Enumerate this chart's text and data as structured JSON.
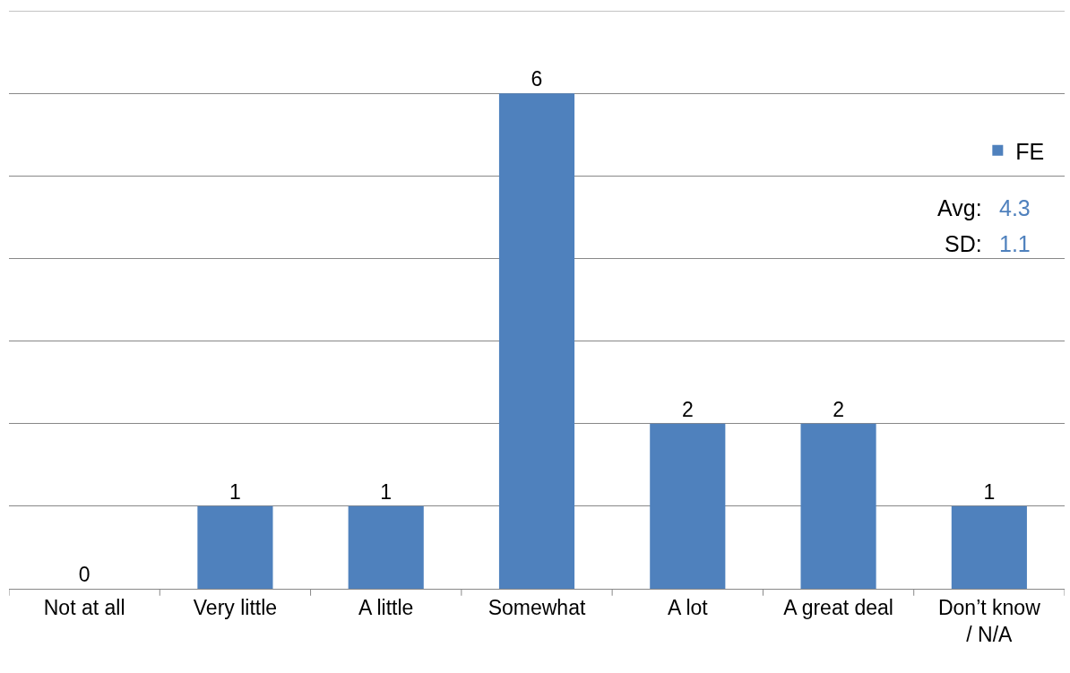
{
  "chart_data": {
    "type": "bar",
    "categories": [
      "Not at all",
      "Very little",
      "A little",
      "Somewhat",
      "A lot",
      "A great deal",
      "Don’t know / N/A"
    ],
    "series": [
      {
        "name": "FE",
        "color": "#4f81bd",
        "values": [
          0,
          1,
          1,
          6,
          2,
          2,
          1
        ]
      }
    ],
    "ylim": [
      0,
      7
    ],
    "yticks": [
      {
        "value": 0,
        "label": null
      },
      {
        "value": 1,
        "label": null
      },
      {
        "value": 2,
        "label": null
      },
      {
        "value": 3,
        "label": null
      },
      {
        "value": 4,
        "label": null
      },
      {
        "value": 5,
        "label": null
      },
      {
        "value": 6,
        "label": null
      },
      {
        "value": 7,
        "label": null
      }
    ],
    "tick_labels": "x",
    "grid": "y",
    "legend": "top right",
    "data_labels": true,
    "annotations": [
      "Avg:",
      "4.3",
      "SD:",
      "1.1"
    ]
  }
}
